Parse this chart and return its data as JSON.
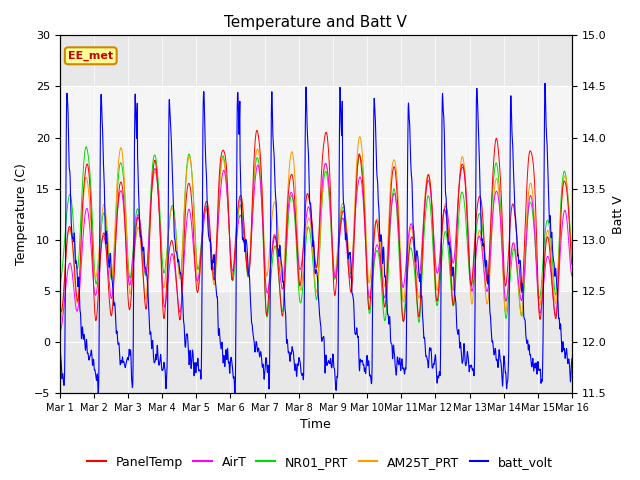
{
  "title": "Temperature and Batt V",
  "xlabel": "Time",
  "ylabel_left": "Temperature (C)",
  "ylabel_right": "Batt V",
  "annotation": "EE_met",
  "ylim_left": [
    -5,
    30
  ],
  "ylim_right": [
    11.5,
    15.0
  ],
  "yticks_left": [
    -5,
    0,
    5,
    10,
    15,
    20,
    25,
    30
  ],
  "yticks_right": [
    11.5,
    12.0,
    12.5,
    13.0,
    13.5,
    14.0,
    14.5,
    15.0
  ],
  "xtick_labels": [
    "Mar 1",
    "Mar 2",
    "Mar 3",
    "Mar 4",
    "Mar 5",
    "Mar 6",
    "Mar 7",
    "Mar 8",
    "Mar 9",
    "Mar 10",
    "Mar 11",
    "Mar 12",
    "Mar 13",
    "Mar 14",
    "Mar 15",
    "Mar 16"
  ],
  "shading_ylim": [
    5,
    25
  ],
  "colors": {
    "PanelTemp": "#ff0000",
    "AirT": "#ff00ff",
    "NR01_PRT": "#00dd00",
    "AM25T_PRT": "#ff9900",
    "batt_volt": "#0000ff"
  },
  "legend_labels": [
    "PanelTemp",
    "AirT",
    "NR01_PRT",
    "AM25T_PRT",
    "batt_volt"
  ],
  "background_color": "#ffffff",
  "plot_bg_color": "#e8e8e8",
  "shading_color": "#f5f5f5",
  "annotation_box_color": "#ffff99",
  "annotation_box_edge": "#cc8800",
  "grid_color": "#ffffff",
  "title_fontsize": 11,
  "label_fontsize": 9,
  "tick_fontsize": 8,
  "legend_fontsize": 9,
  "n_points": 2000,
  "days": 15
}
